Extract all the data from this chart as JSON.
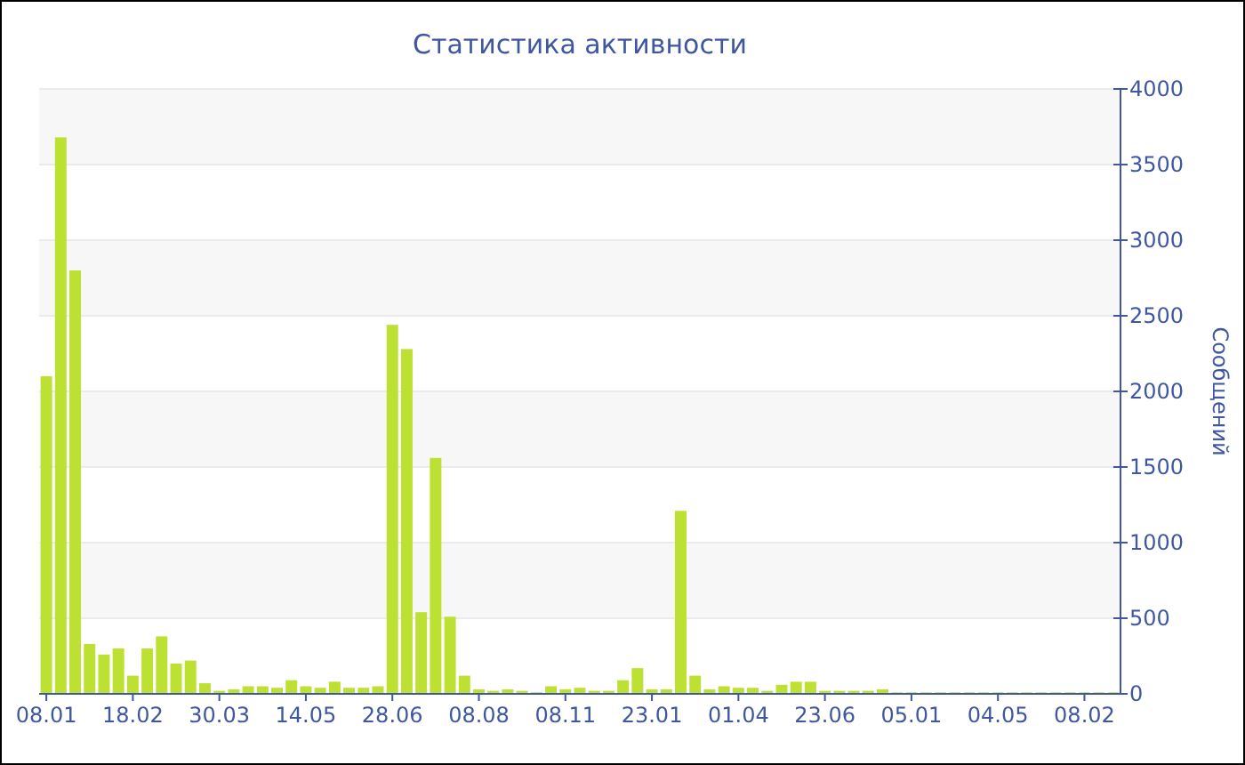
{
  "chart_data": {
    "type": "bar",
    "title": "Статистика активности",
    "ylabel": "Сообщений",
    "categories": [
      "08.01",
      null,
      null,
      null,
      null,
      null,
      "18.02",
      null,
      null,
      null,
      null,
      null,
      "30.03",
      null,
      null,
      null,
      null,
      null,
      "14.05",
      null,
      null,
      null,
      null,
      null,
      "28.06",
      null,
      null,
      null,
      null,
      null,
      "08.08",
      null,
      null,
      null,
      null,
      null,
      "08.11",
      null,
      null,
      null,
      null,
      null,
      "23.01",
      null,
      null,
      null,
      null,
      null,
      "01.04",
      null,
      null,
      null,
      null,
      null,
      "23.06",
      null,
      null,
      null,
      null,
      null,
      "05.01",
      null,
      null,
      null,
      null,
      null,
      "04.05",
      null,
      null,
      null,
      null,
      null,
      "08.02",
      null,
      null
    ],
    "values": [
      2100,
      3680,
      2800,
      330,
      260,
      300,
      120,
      300,
      380,
      200,
      220,
      70,
      20,
      30,
      50,
      50,
      40,
      90,
      50,
      40,
      80,
      40,
      40,
      50,
      2440,
      2280,
      540,
      1560,
      510,
      120,
      30,
      20,
      30,
      20,
      10,
      50,
      30,
      40,
      20,
      20,
      90,
      170,
      30,
      30,
      1210,
      120,
      30,
      50,
      40,
      40,
      20,
      60,
      80,
      80,
      20,
      20,
      20,
      20,
      30,
      10,
      10,
      10,
      10,
      10,
      10,
      10,
      10,
      10,
      10,
      10,
      10,
      10,
      10,
      10,
      10
    ],
    "color": "#bde132",
    "ylim": [
      0,
      4000
    ],
    "yticks": [
      0,
      500,
      1000,
      1500,
      2000,
      2500,
      3000,
      3500,
      4000
    ],
    "grid": "y"
  }
}
